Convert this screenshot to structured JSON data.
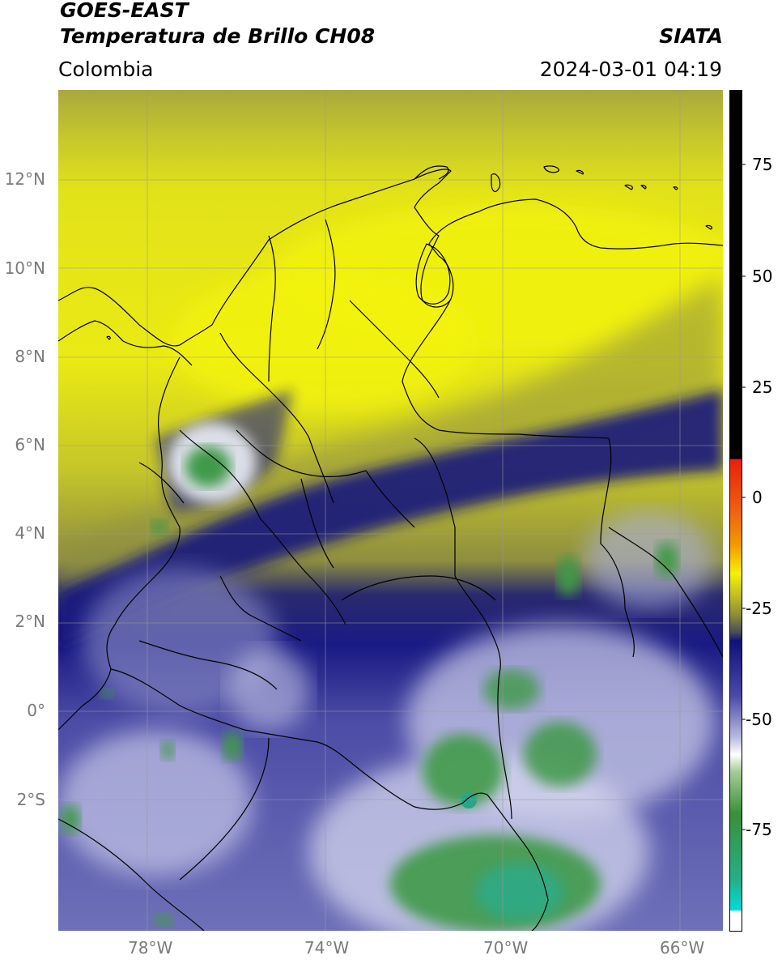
{
  "header": {
    "line1": "GOES-EAST",
    "line2": "Temperatura de Brillo CH08",
    "brand": "SIATA",
    "region": "Colombia",
    "datetime": "2024-03-01 04:19"
  },
  "map": {
    "lon_labels": [
      "78°W",
      "74°W",
      "70°W",
      "66°W"
    ],
    "lat_labels": [
      "12°N",
      "10°N",
      "8°N",
      "6°N",
      "4°N",
      "2°N",
      "0°",
      "2°S"
    ]
  },
  "colorbar": {
    "ticks": [
      "75",
      "50",
      "25",
      "0",
      "-25",
      "-50",
      "-75"
    ],
    "colors": {
      "black": "#000000",
      "red": "#e8200c",
      "orange": "#f29a00",
      "yellow": "#f5f00a",
      "olive": "#8a8a3a",
      "navy": "#10107a",
      "blue": "#4a4aa8",
      "lavender": "#b8bce0",
      "white": "#ffffff",
      "green": "#3a8f3a",
      "teal": "#24b08a",
      "cyan": "#00dcdc"
    }
  }
}
